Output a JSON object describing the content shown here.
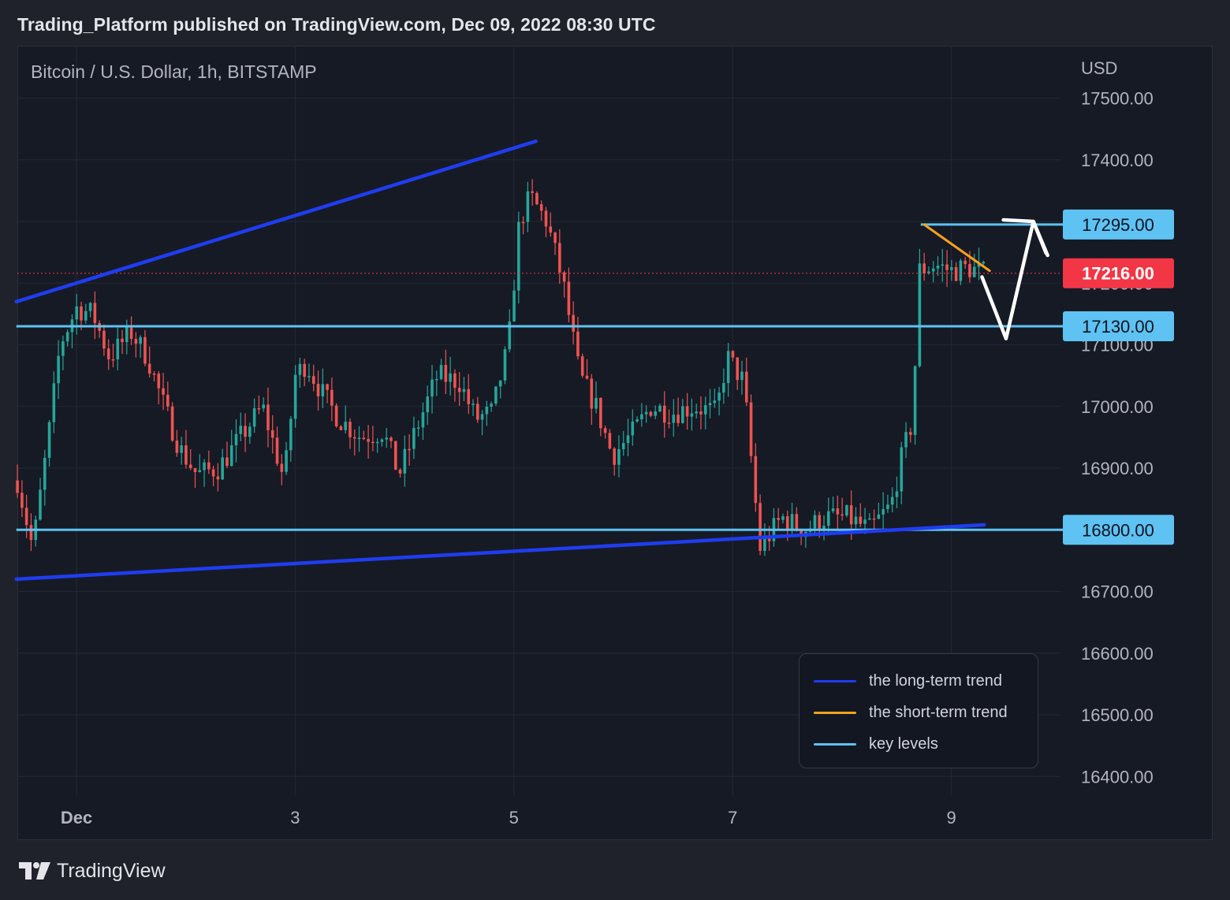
{
  "header": {
    "title": "Trading_Platform published on TradingView.com, Dec 09, 2022 08:30 UTC"
  },
  "footer": {
    "brand": "TradingView"
  },
  "colors": {
    "background": "#161a25",
    "grid": "#242834",
    "up": "#26a69a",
    "down": "#ef5350",
    "long_term_trend": "#1f3df0",
    "short_term_trend": "#f7a21b",
    "key_level": "#5ec2f2",
    "current_price": "#f23645",
    "projection": "#ffffff",
    "axis_text": "#b2b5be"
  },
  "chart_data": {
    "type": "candlestick",
    "title": "Bitcoin / U.S. Dollar, 1h, BITSTAMP",
    "currency": "USD",
    "ylim": [
      16380,
      17580
    ],
    "y_ticks": [
      "16400.00",
      "16500.00",
      "16600.00",
      "16700.00",
      "16800.00",
      "16900.00",
      "17000.00",
      "17100.00",
      "17200.00",
      "17300.00",
      "17400.00",
      "17500.00"
    ],
    "x_ticks": [
      {
        "label": "Dec",
        "day": 1
      },
      {
        "label": "3",
        "day": 3
      },
      {
        "label": "5",
        "day": 5
      },
      {
        "label": "7",
        "day": 7
      },
      {
        "label": "9",
        "day": 9
      }
    ],
    "x_range_days": [
      30.45,
      10.0
    ],
    "candle_close_path": [
      [
        30.46,
        16880
      ],
      [
        30.6,
        16770
      ],
      [
        30.75,
        16960
      ],
      [
        30.85,
        17100
      ],
      [
        31.0,
        17160
      ],
      [
        31.15,
        17150
      ],
      [
        31.3,
        17080
      ],
      [
        31.5,
        17120
      ],
      [
        31.65,
        17080
      ],
      [
        31.8,
        17000
      ],
      [
        31.95,
        16930
      ],
      [
        32.1,
        16890
      ],
      [
        32.3,
        16900
      ],
      [
        32.5,
        16950
      ],
      [
        32.7,
        17000
      ],
      [
        32.9,
        16880
      ],
      [
        33.0,
        17050
      ],
      [
        33.1,
        17070
      ],
      [
        33.25,
        17020
      ],
      [
        33.4,
        16980
      ],
      [
        33.6,
        16950
      ],
      [
        33.8,
        16960
      ],
      [
        33.95,
        16890
      ],
      [
        34.1,
        16960
      ],
      [
        34.3,
        17050
      ],
      [
        34.5,
        17040
      ],
      [
        34.65,
        16980
      ],
      [
        34.8,
        16990
      ],
      [
        34.95,
        17100
      ],
      [
        35.05,
        17300
      ],
      [
        35.15,
        17340
      ],
      [
        35.3,
        17300
      ],
      [
        35.45,
        17200
      ],
      [
        35.6,
        17050
      ],
      [
        35.75,
        17000
      ],
      [
        35.9,
        16920
      ],
      [
        36.1,
        16960
      ],
      [
        36.25,
        17000
      ],
      [
        36.45,
        16990
      ],
      [
        36.65,
        17000
      ],
      [
        36.85,
        16990
      ],
      [
        36.95,
        17080
      ],
      [
        37.1,
        17040
      ],
      [
        37.25,
        16770
      ],
      [
        37.45,
        16820
      ],
      [
        37.65,
        16800
      ],
      [
        37.85,
        16820
      ],
      [
        38.05,
        16820
      ],
      [
        38.25,
        16800
      ],
      [
        38.45,
        16840
      ],
      [
        38.55,
        16920
      ],
      [
        38.65,
        16980
      ],
      [
        38.7,
        17220
      ],
      [
        38.85,
        17230
      ],
      [
        39.0,
        17220
      ],
      [
        39.15,
        17225
      ],
      [
        39.3,
        17216
      ]
    ],
    "candle_wick_range": [
      16730,
      17420
    ],
    "key_levels": [
      {
        "label": "17295.00",
        "value": 17295,
        "from_day": 38.72
      },
      {
        "label": "17130.00",
        "value": 17130,
        "from_day": 30.45
      },
      {
        "label": "16800.00",
        "value": 16800,
        "from_day": 30.45
      }
    ],
    "current_price": {
      "label": "17216.00",
      "value": 17216
    },
    "long_term_trend": [
      {
        "start": [
          30.45,
          17170
        ],
        "end": [
          35.2,
          17430
        ]
      },
      {
        "start": [
          30.45,
          16720
        ],
        "end": [
          39.3,
          16808
        ]
      }
    ],
    "short_term_trend": {
      "start": [
        38.75,
        17295
      ],
      "end": [
        39.35,
        17220
      ]
    },
    "projection": [
      [
        39.28,
        17210
      ],
      [
        39.5,
        17110
      ],
      [
        39.75,
        17300
      ],
      [
        39.88,
        17245
      ]
    ],
    "legend": [
      {
        "label": "the long-term trend",
        "color": "#1f3df0"
      },
      {
        "label": "the short-term trend",
        "color": "#f7a21b"
      },
      {
        "label": "key levels",
        "color": "#5ec2f2"
      }
    ],
    "legend_position": "bottom-right",
    "grid": true
  }
}
